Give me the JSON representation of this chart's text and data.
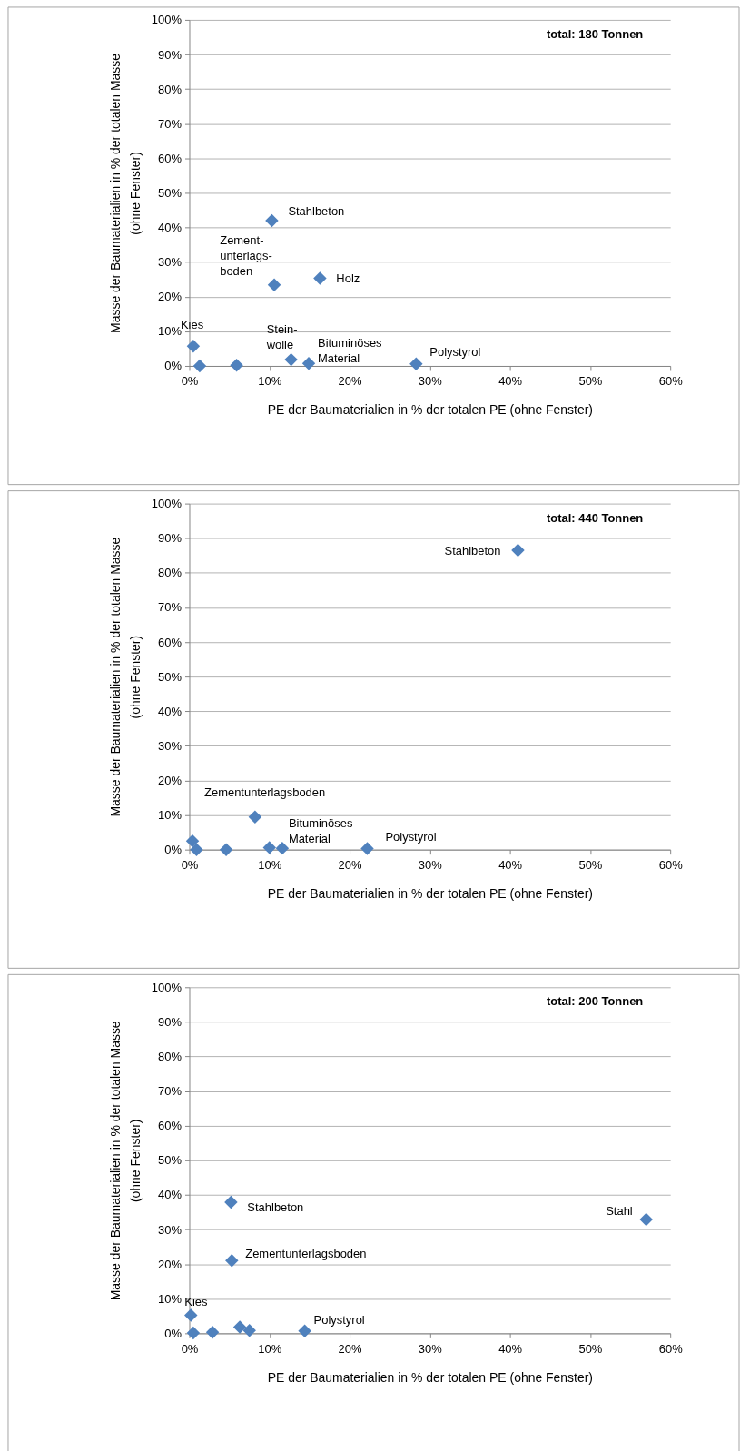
{
  "chart_data": [
    {
      "type": "scatter",
      "xlabel": "PE der Baumaterialien  in % der totalen PE (ohne Fenster)",
      "ylabel": "Masse der Baumaterialien  in % der totalen Masse\n(ohne Fenster)",
      "marker": "diamond",
      "color": "#4f81bd",
      "grid": "y",
      "xlim": [
        0,
        60
      ],
      "ylim": [
        0,
        100
      ],
      "xticks": [
        {
          "value": 0,
          "label": "0%"
        },
        {
          "value": 10,
          "label": "10%"
        },
        {
          "value": 20,
          "label": "20%"
        },
        {
          "value": 30,
          "label": "30%"
        },
        {
          "value": 40,
          "label": "40%"
        },
        {
          "value": 50,
          "label": "50%"
        },
        {
          "value": 60,
          "label": "60%"
        }
      ],
      "yticks": [
        {
          "value": 0,
          "label": "0%"
        },
        {
          "value": 10,
          "label": "10%"
        },
        {
          "value": 20,
          "label": "20%"
        },
        {
          "value": 30,
          "label": "30%"
        },
        {
          "value": 40,
          "label": "40%"
        },
        {
          "value": 50,
          "label": "50%"
        },
        {
          "value": 60,
          "label": "60%"
        },
        {
          "value": 70,
          "label": "70%"
        },
        {
          "value": 80,
          "label": "80%"
        },
        {
          "value": 90,
          "label": "90%"
        },
        {
          "value": 100,
          "label": "100%"
        }
      ],
      "x": [
        0.5,
        1.3,
        5.9,
        10.3,
        10.6,
        16.3,
        12.7,
        14.9,
        28.3
      ],
      "values": [
        5.7,
        0,
        0.2,
        42,
        23.4,
        25.3,
        1.8,
        0.7,
        0.6
      ],
      "annotations": [
        "total: 180 Tonnen",
        {
          "text": "Kies",
          "x": 0.5,
          "y": 5.7
        },
        {
          "text": "Stahlbeton",
          "x": 10.3,
          "y": 42
        },
        {
          "text": "Zement-\nunterlags-\nboden",
          "x": 10.6,
          "y": 23.4
        },
        {
          "text": "Holz",
          "x": 16.3,
          "y": 25.3
        },
        {
          "text": "Stein-\nwolle",
          "x": 12.7,
          "y": 1.8
        },
        {
          "text": "Bituminöses\nMaterial",
          "x": 14.9,
          "y": 0.7
        },
        {
          "text": "Polystyrol",
          "x": 28.3,
          "y": 0.6
        }
      ]
    },
    {
      "type": "scatter",
      "xlabel": "PE der Baumaterialien  in % der totalen PE (ohne Fenster)",
      "ylabel": "Masse der Baumaterialien  in % der totalen Masse\n(ohne Fenster)",
      "marker": "diamond",
      "color": "#4f81bd",
      "grid": "y",
      "xlim": [
        0,
        60
      ],
      "ylim": [
        0,
        100
      ],
      "xticks": [
        {
          "value": 0,
          "label": "0%"
        },
        {
          "value": 10,
          "label": "10%"
        },
        {
          "value": 20,
          "label": "20%"
        },
        {
          "value": 30,
          "label": "30%"
        },
        {
          "value": 40,
          "label": "40%"
        },
        {
          "value": 50,
          "label": "50%"
        },
        {
          "value": 60,
          "label": "60%"
        }
      ],
      "yticks": [
        {
          "value": 0,
          "label": "0%"
        },
        {
          "value": 10,
          "label": "10%"
        },
        {
          "value": 20,
          "label": "20%"
        },
        {
          "value": 30,
          "label": "30%"
        },
        {
          "value": 40,
          "label": "40%"
        },
        {
          "value": 50,
          "label": "50%"
        },
        {
          "value": 60,
          "label": "60%"
        },
        {
          "value": 70,
          "label": "70%"
        },
        {
          "value": 80,
          "label": "80%"
        },
        {
          "value": 90,
          "label": "90%"
        },
        {
          "value": 100,
          "label": "100%"
        }
      ],
      "x": [
        0.4,
        0.9,
        4.6,
        8.2,
        10.0,
        11.6,
        22.2,
        41.0
      ],
      "values": [
        2.5,
        0,
        0,
        9.4,
        0.6,
        0.4,
        0.3,
        86.5
      ],
      "annotations": [
        "total: 440 Tonnen",
        {
          "text": "Stahlbeton",
          "x": 41.0,
          "y": 86.5
        },
        {
          "text": "Zementunterlagsboden",
          "x": 8.2,
          "y": 9.4
        },
        {
          "text": "Bituminöses\nMaterial",
          "x": 11.6,
          "y": 0.4
        },
        {
          "text": "Polystyrol",
          "x": 22.2,
          "y": 0.3
        }
      ]
    },
    {
      "type": "scatter",
      "xlabel": "PE der Baumaterialien  in % der totalen PE (ohne Fenster)",
      "ylabel": "Masse der Baumaterialien  in % der totalen Masse\n(ohne Fenster)",
      "marker": "diamond",
      "color": "#4f81bd",
      "grid": "y",
      "xlim": [
        0,
        60
      ],
      "ylim": [
        0,
        100
      ],
      "xticks": [
        {
          "value": 0,
          "label": "0%"
        },
        {
          "value": 10,
          "label": "10%"
        },
        {
          "value": 20,
          "label": "20%"
        },
        {
          "value": 30,
          "label": "30%"
        },
        {
          "value": 40,
          "label": "40%"
        },
        {
          "value": 50,
          "label": "50%"
        },
        {
          "value": 60,
          "label": "60%"
        }
      ],
      "yticks": [
        {
          "value": 0,
          "label": "0%"
        },
        {
          "value": 10,
          "label": "10%"
        },
        {
          "value": 20,
          "label": "20%"
        },
        {
          "value": 30,
          "label": "30%"
        },
        {
          "value": 40,
          "label": "40%"
        },
        {
          "value": 50,
          "label": "50%"
        },
        {
          "value": 60,
          "label": "60%"
        },
        {
          "value": 70,
          "label": "70%"
        },
        {
          "value": 80,
          "label": "80%"
        },
        {
          "value": 90,
          "label": "90%"
        },
        {
          "value": 100,
          "label": "100%"
        }
      ],
      "x": [
        0.2,
        0.5,
        2.9,
        6.3,
        7.5,
        14.4,
        5.2,
        5.3,
        57.0
      ],
      "values": [
        5.2,
        0.1,
        0.3,
        1.8,
        0.8,
        0.7,
        37.9,
        21.0,
        32.9
      ],
      "annotations": [
        "total: 200 Tonnen",
        {
          "text": "Kies",
          "x": 0.2,
          "y": 5.2
        },
        {
          "text": "Stahlbeton",
          "x": 5.2,
          "y": 37.9
        },
        {
          "text": "Zementunterlagsboden",
          "x": 5.3,
          "y": 21.0
        },
        {
          "text": "Polystyrol",
          "x": 14.4,
          "y": 0.7
        },
        {
          "text": "Stahl",
          "x": 57.0,
          "y": 32.9
        }
      ]
    }
  ]
}
